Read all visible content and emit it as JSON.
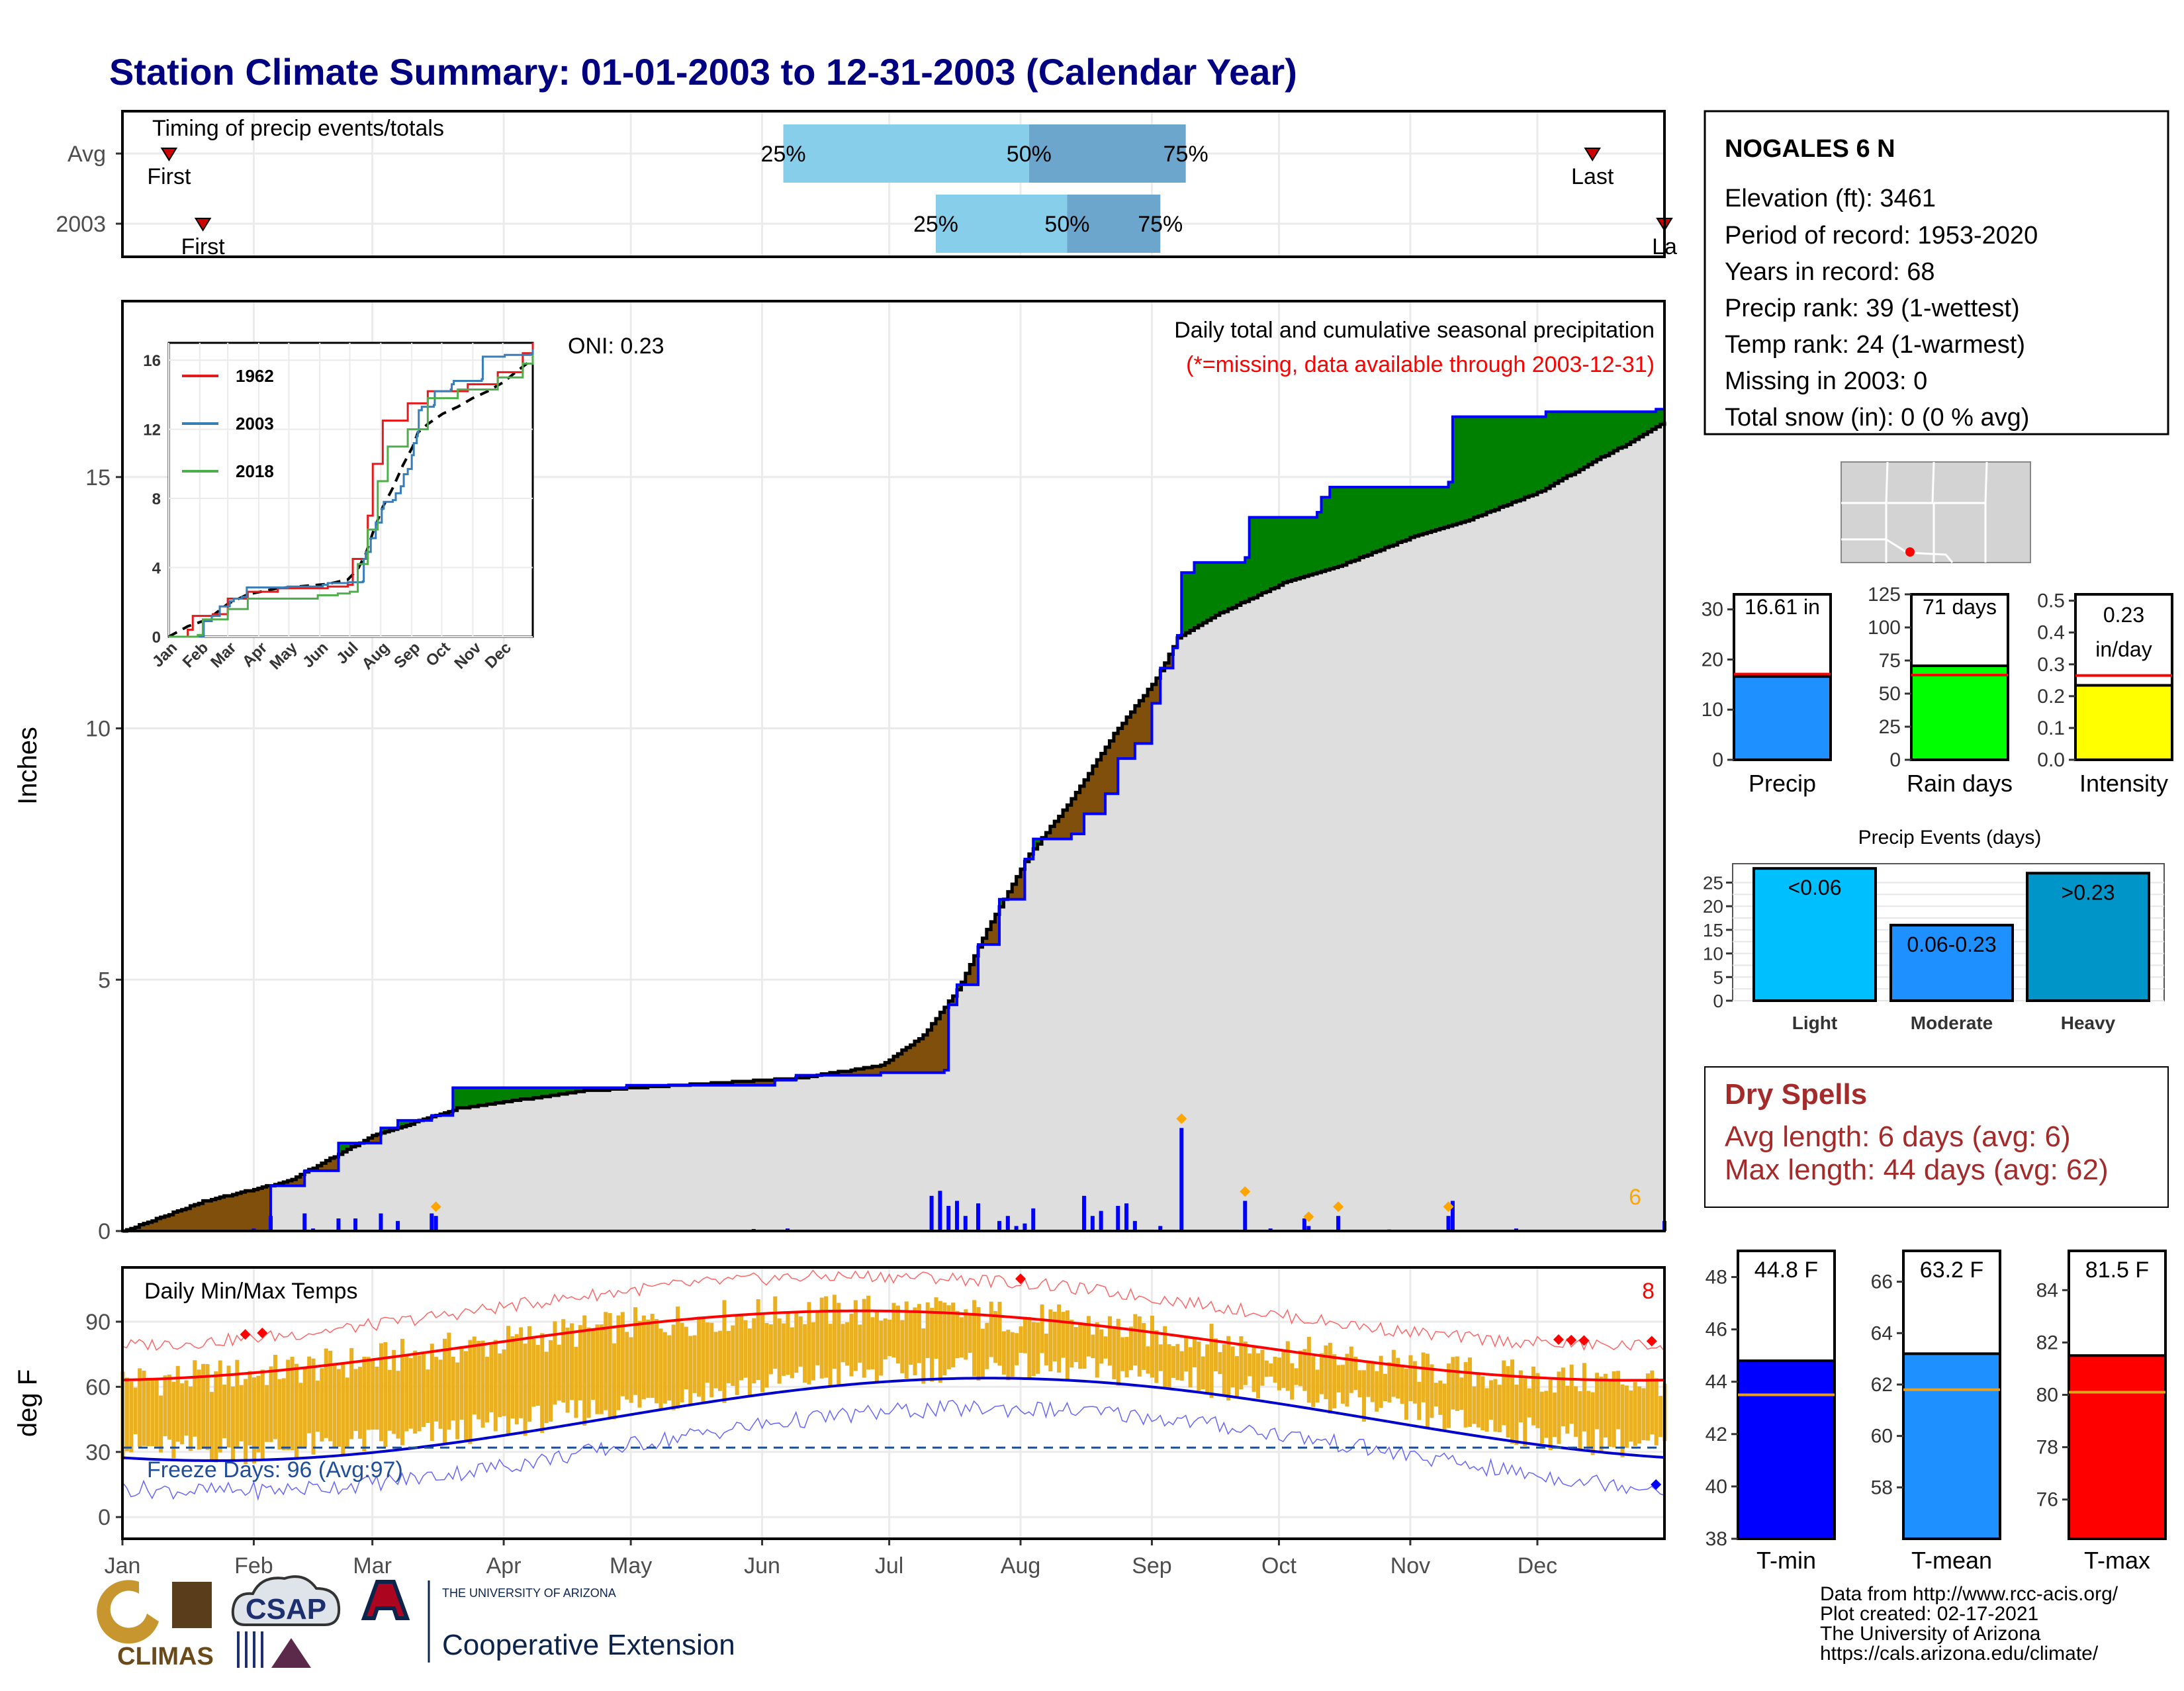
{
  "title": "Station Climate Summary: 01-01-2003 to 12-31-2003 (Calendar Year)",
  "station": {
    "name": "NOGALES 6 N",
    "lines": [
      "Elevation (ft): 3461",
      "Period of record: 1953-2020",
      "Years in record: 68",
      "Precip rank: 39 (1-wettest)",
      "Temp rank: 24 (1-warmest)",
      "Missing in 2003: 0",
      "Total snow (in): 0 (0 % avg)"
    ]
  },
  "colors": {
    "title": "#000080",
    "obs_line": "#0000ff",
    "avg_line": "#000000",
    "wetter": "#008000",
    "drier": "#7f4f0b",
    "bars": "#0000ff",
    "tmax": "#ff0000",
    "tmin": "#0000cc",
    "temp_bars": "#eab020",
    "light": "#00bfff",
    "moderate": "#1e90ff",
    "heavy": "#0095c8"
  },
  "month_labels": [
    "Jan",
    "Feb",
    "Mar",
    "Apr",
    "May",
    "Jun",
    "Jul",
    "Aug",
    "Sep",
    "Oct",
    "Nov",
    "Dec"
  ],
  "timing": {
    "label": "Timing of precip events/totals",
    "rows": [
      "Avg",
      "2003"
    ],
    "avg": {
      "first_label": "First",
      "last_label": "Last",
      "q25": "25%",
      "q50": "50%",
      "q75": "75%",
      "q25_doy": 157,
      "q50_doy": 215,
      "q75_doy": 252,
      "first_doy": 12,
      "last_doy": 348
    },
    "obs": {
      "first_label": "First",
      "last_label": "La",
      "q25": "25%",
      "q50": "50%",
      "q75": "75%",
      "q25_doy": 193,
      "q50_doy": 224,
      "q75_doy": 246,
      "first_doy": 20,
      "last_doy": 365
    }
  },
  "precip_panel": {
    "ylabel": "Inches",
    "oni": "ONI: 0.23",
    "subtitle": "Daily total and cumulative seasonal precipitation",
    "missing_note": "(*=missing, data available through 2003-12-31)",
    "extreme_count": "6"
  },
  "inset": {
    "legend": [
      "1962",
      "2003",
      "2018"
    ],
    "colors": [
      "#e41a1c",
      "#377eb8",
      "#4daf4a"
    ],
    "ytick_labels": [
      "0",
      "4",
      "8",
      "12",
      "16"
    ],
    "xtick_labels": [
      "Jan",
      "Feb",
      "Mar",
      "Apr",
      "May",
      "Jun",
      "Jul",
      "Aug",
      "Sep",
      "Oct",
      "Nov",
      "Dec"
    ]
  },
  "temp_panel": {
    "ylabel": "deg F",
    "title": "Daily Min/Max Temps",
    "freeze": "Freeze Days: 96 (Avg:97)",
    "extreme_count": "8",
    "ytick_labels": [
      "0",
      "30",
      "60",
      "90"
    ]
  },
  "summary_bars": {
    "precip": {
      "label": "Precip",
      "value_label": "16.61 in",
      "value": 16.61,
      "avg": 17.1,
      "ymax": 33,
      "ticks": [
        "0",
        "10",
        "20",
        "30"
      ]
    },
    "raindays": {
      "label": "Rain days",
      "value_label": "71 days",
      "value": 71,
      "avg": 64,
      "ymax": 125,
      "ticks": [
        "0",
        "25",
        "50",
        "75",
        "100",
        "125"
      ]
    },
    "intensity": {
      "label": "Intensity",
      "value_label_1": "0.23",
      "value_label_2": "in/day",
      "value": 0.234,
      "avg": 0.265,
      "ymax": 0.52,
      "ticks": [
        "0.0",
        "0.1",
        "0.2",
        "0.3",
        "0.4",
        "0.5"
      ]
    }
  },
  "events": {
    "title": "Precip Events (days)",
    "categories": [
      "Light",
      "Moderate",
      "Heavy"
    ],
    "bar_labels": [
      "<0.06",
      "0.06-0.23",
      ">0.23"
    ],
    "values": [
      28,
      16,
      27
    ],
    "ticks": [
      "0",
      "5",
      "10",
      "15",
      "20",
      "25"
    ]
  },
  "dry_spells": {
    "title": "Dry Spells",
    "line1": "Avg length: 6 days (avg: 6)",
    "line2": "Max length: 44 days (avg: 62)"
  },
  "temp_bars": {
    "tmin": {
      "label": "T-min",
      "value_label": "44.8 F",
      "value": 44.8,
      "avg": 43.5,
      "ymin": 38,
      "ymax": 49,
      "ticks": [
        "38",
        "40",
        "42",
        "44",
        "46",
        "48"
      ]
    },
    "tmean": {
      "label": "T-mean",
      "value_label": "63.2 F",
      "value": 63.2,
      "avg": 61.8,
      "ymin": 56,
      "ymax": 67.2,
      "ticks": [
        "58",
        "60",
        "62",
        "64",
        "66"
      ]
    },
    "tmax": {
      "label": "T-max",
      "value_label": "81.5 F",
      "value": 81.5,
      "avg": 80.1,
      "ymin": 74.5,
      "ymax": 85.5,
      "ticks": [
        "76",
        "78",
        "80",
        "82",
        "84"
      ]
    }
  },
  "footer": {
    "credits": [
      "Data from http://www.rcc-acis.org/",
      "Plot created: 02-17-2021",
      "The University of Arizona",
      "https://cals.arizona.edu/climate/"
    ],
    "climas": "CLIMAS",
    "csap": "CSAP",
    "ua_small": "THE UNIVERSITY OF ARIZONA",
    "coop": "Cooperative Extension"
  },
  "chart_data": {
    "type": "area",
    "title": "Daily total and cumulative seasonal precipitation",
    "ylabel": "Inches",
    "ylim": [
      0,
      18.5
    ],
    "xlim": [
      1,
      365
    ],
    "observed_cumulative": [
      [
        1,
        0
      ],
      [
        32,
        0
      ],
      [
        36,
        0.9
      ],
      [
        44,
        1.2
      ],
      [
        52,
        1.75
      ],
      [
        62,
        2.05
      ],
      [
        66,
        2.2
      ],
      [
        74,
        2.3
      ],
      [
        79,
        2.85
      ],
      [
        120,
        2.9
      ],
      [
        155,
        3.0
      ],
      [
        160,
        3.1
      ],
      [
        180,
        3.15
      ],
      [
        195,
        3.2
      ],
      [
        196,
        4.5
      ],
      [
        198,
        4.9
      ],
      [
        203,
        5.7
      ],
      [
        208,
        6.6
      ],
      [
        214,
        7.4
      ],
      [
        216,
        7.8
      ],
      [
        225,
        7.9
      ],
      [
        228,
        8.3
      ],
      [
        233,
        8.7
      ],
      [
        236,
        9.4
      ],
      [
        240,
        9.7
      ],
      [
        244,
        10.5
      ],
      [
        246,
        11.2
      ],
      [
        249,
        11.6
      ],
      [
        250,
        11.85
      ],
      [
        251,
        13.1
      ],
      [
        254,
        13.3
      ],
      [
        266,
        13.4
      ],
      [
        267,
        14.2
      ],
      [
        283,
        14.3
      ],
      [
        284,
        14.6
      ],
      [
        286,
        14.8
      ],
      [
        314,
        14.9
      ],
      [
        315,
        16.2
      ],
      [
        337,
        16.3
      ],
      [
        363,
        16.35
      ],
      [
        365,
        16.61
      ]
    ],
    "average_cumulative": [
      [
        1,
        0
      ],
      [
        20,
        0.6
      ],
      [
        40,
        1.0
      ],
      [
        60,
        1.9
      ],
      [
        80,
        2.45
      ],
      [
        110,
        2.8
      ],
      [
        140,
        2.95
      ],
      [
        160,
        3.05
      ],
      [
        180,
        3.3
      ],
      [
        190,
        3.9
      ],
      [
        198,
        4.8
      ],
      [
        205,
        6.0
      ],
      [
        215,
        7.5
      ],
      [
        225,
        8.6
      ],
      [
        235,
        9.9
      ],
      [
        245,
        11.0
      ],
      [
        250,
        11.8
      ],
      [
        260,
        12.3
      ],
      [
        275,
        12.9
      ],
      [
        290,
        13.3
      ],
      [
        305,
        13.8
      ],
      [
        320,
        14.2
      ],
      [
        335,
        14.7
      ],
      [
        350,
        15.4
      ],
      [
        358,
        15.75
      ],
      [
        365,
        16.1
      ]
    ],
    "daily_precip": [
      [
        32,
        0.05
      ],
      [
        36,
        0.3
      ],
      [
        44,
        0.35
      ],
      [
        46,
        0.05
      ],
      [
        52,
        0.25
      ],
      [
        56,
        0.25
      ],
      [
        62,
        0.35
      ],
      [
        66,
        0.2
      ],
      [
        74,
        0.35
      ],
      [
        75,
        0.3
      ],
      [
        150,
        0.04
      ],
      [
        158,
        0.05
      ],
      [
        192,
        0.7
      ],
      [
        194,
        0.8
      ],
      [
        196,
        0.5
      ],
      [
        198,
        0.6
      ],
      [
        200,
        0.3
      ],
      [
        203,
        0.55
      ],
      [
        208,
        0.2
      ],
      [
        210,
        0.3
      ],
      [
        212,
        0.1
      ],
      [
        214,
        0.15
      ],
      [
        216,
        0.45
      ],
      [
        228,
        0.7
      ],
      [
        230,
        0.3
      ],
      [
        232,
        0.4
      ],
      [
        236,
        0.5
      ],
      [
        238,
        0.55
      ],
      [
        240,
        0.2
      ],
      [
        246,
        0.1
      ],
      [
        251,
        2.05
      ],
      [
        266,
        0.6
      ],
      [
        272,
        0.05
      ],
      [
        280,
        0.25
      ],
      [
        281,
        0.1
      ],
      [
        288,
        0.3
      ],
      [
        300,
        0.03
      ],
      [
        314,
        0.3
      ],
      [
        315,
        0.6
      ],
      [
        330,
        0.05
      ],
      [
        346,
        0.02
      ],
      [
        365,
        0.2
      ]
    ],
    "extreme_markers_doy": [
      75,
      251,
      266,
      281,
      288,
      314
    ]
  }
}
